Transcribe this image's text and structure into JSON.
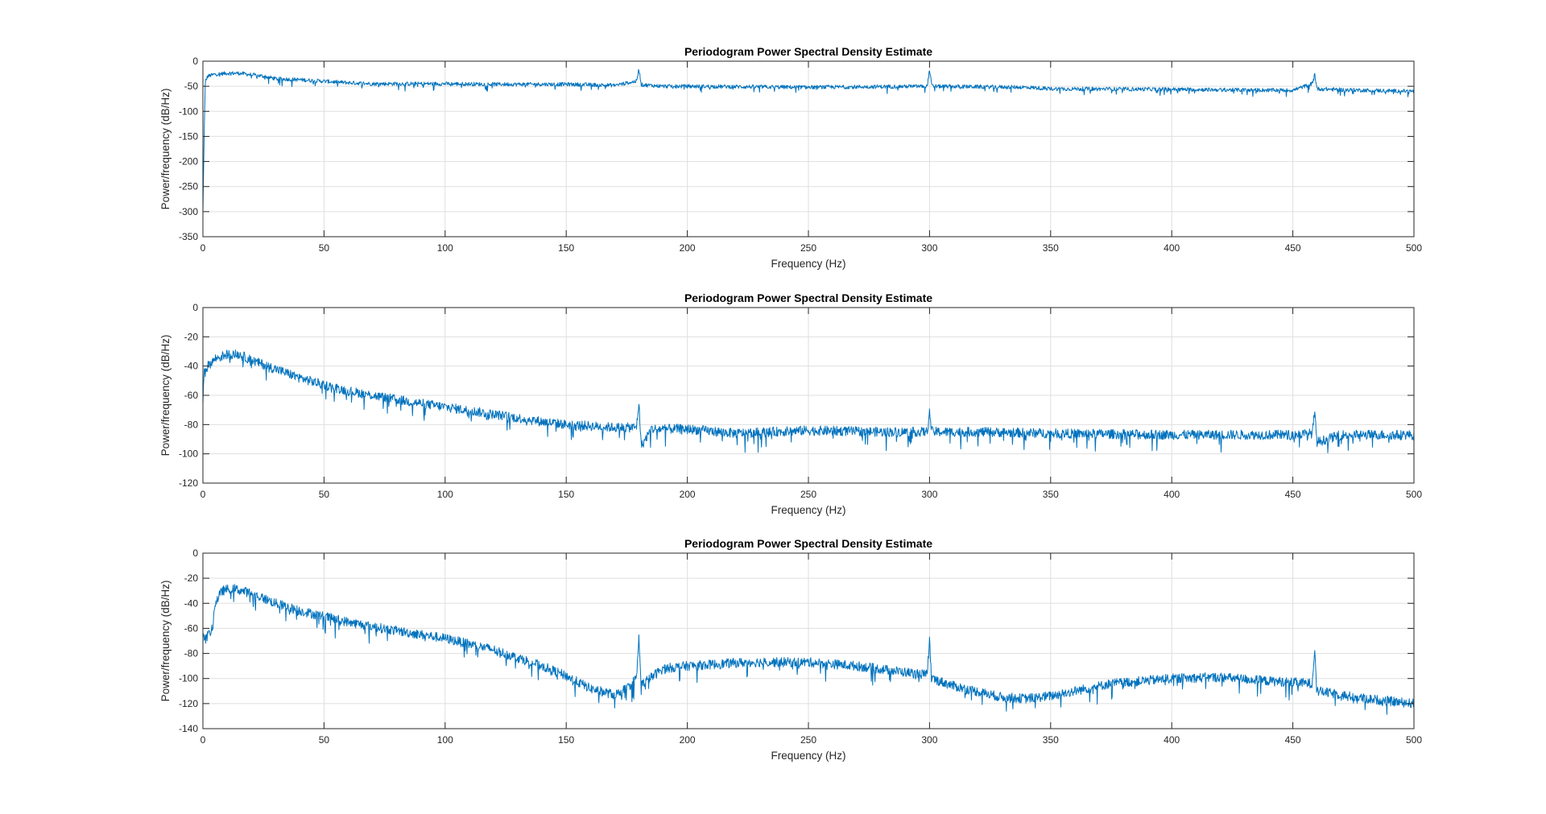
{
  "chart_data": [
    {
      "type": "line",
      "title": "Periodogram Power Spectral Density Estimate",
      "xlabel": "Frequency (Hz)",
      "ylabel": "Power/frequency (dB/Hz)",
      "xlim": [
        0,
        500
      ],
      "ylim": [
        -350,
        0
      ],
      "xticks": [
        0,
        50,
        100,
        150,
        200,
        250,
        300,
        350,
        400,
        450,
        500
      ],
      "yticks": [
        0,
        -50,
        -100,
        -150,
        -200,
        -250,
        -300,
        -350
      ],
      "grid": true,
      "color": "#0072BD",
      "series": [
        {
          "values_note": "approximate envelope read from the plot; fine noise added when drawing",
          "x": [
            0,
            0.5,
            1,
            2,
            5,
            10,
            15,
            20,
            25,
            30,
            40,
            50,
            60,
            70,
            80,
            100,
            120,
            150,
            170,
            179,
            180,
            181,
            190,
            200,
            250,
            299,
            300,
            301,
            340,
            350,
            400,
            420,
            450,
            458,
            459,
            460,
            470,
            500
          ],
          "y": [
            -300,
            -150,
            -40,
            -30,
            -26,
            -24,
            -24,
            -27,
            -30,
            -35,
            -37,
            -40,
            -43,
            -45,
            -45,
            -45,
            -46,
            -46,
            -48,
            -40,
            -15,
            -47,
            -50,
            -50,
            -52,
            -50,
            -18,
            -50,
            -52,
            -55,
            -56,
            -57,
            -58,
            -45,
            -25,
            -55,
            -57,
            -60
          ]
        }
      ]
    },
    {
      "type": "line",
      "title": "Periodogram Power Spectral Density Estimate",
      "xlabel": "Frequency (Hz)",
      "ylabel": "Power/frequency (dB/Hz)",
      "xlim": [
        0,
        500
      ],
      "ylim": [
        -120,
        0
      ],
      "xticks": [
        0,
        50,
        100,
        150,
        200,
        250,
        300,
        350,
        400,
        450,
        500
      ],
      "yticks": [
        0,
        -20,
        -40,
        -60,
        -80,
        -100,
        -120
      ],
      "grid": true,
      "color": "#0072BD",
      "series": [
        {
          "values_note": "approximate envelope read from the plot; fine noise added when drawing",
          "x": [
            0,
            0.5,
            2,
            5,
            10,
            15,
            20,
            30,
            40,
            50,
            60,
            80,
            100,
            120,
            140,
            150,
            160,
            170,
            179,
            180,
            181,
            185,
            200,
            220,
            250,
            280,
            299,
            300,
            301,
            320,
            350,
            400,
            420,
            450,
            458,
            459,
            460,
            470,
            500
          ],
          "y": [
            -65,
            -45,
            -40,
            -35,
            -32,
            -32,
            -36,
            -42,
            -48,
            -53,
            -57,
            -63,
            -68,
            -73,
            -78,
            -80,
            -81,
            -82,
            -82,
            -65,
            -95,
            -83,
            -83,
            -86,
            -84,
            -85,
            -85,
            -72,
            -85,
            -85,
            -86,
            -87,
            -87,
            -87,
            -86,
            -72,
            -92,
            -87,
            -87
          ]
        }
      ]
    },
    {
      "type": "line",
      "title": "Periodogram Power Spectral Density Estimate",
      "xlabel": "Frequency (Hz)",
      "ylabel": "Power/frequency (dB/Hz)",
      "xlim": [
        0,
        500
      ],
      "ylim": [
        -140,
        0
      ],
      "xticks": [
        0,
        50,
        100,
        150,
        200,
        250,
        300,
        350,
        400,
        450,
        500
      ],
      "yticks": [
        0,
        -20,
        -40,
        -60,
        -80,
        -100,
        -120,
        -140
      ],
      "grid": true,
      "color": "#0072BD",
      "series": [
        {
          "values_note": "approximate envelope read from the plot; fine noise added when drawing",
          "x": [
            0,
            2,
            4,
            5,
            8,
            12,
            20,
            30,
            40,
            60,
            80,
            100,
            120,
            140,
            150,
            160,
            170,
            175,
            179,
            180,
            181,
            190,
            200,
            225,
            250,
            270,
            290,
            299,
            300,
            301,
            310,
            330,
            340,
            350,
            375,
            400,
            420,
            440,
            458,
            459,
            460,
            470,
            480,
            500
          ],
          "y": [
            -68,
            -66,
            -60,
            -40,
            -30,
            -28,
            -32,
            -40,
            -46,
            -55,
            -62,
            -68,
            -77,
            -90,
            -98,
            -108,
            -113,
            -108,
            -100,
            -68,
            -105,
            -92,
            -90,
            -87,
            -87,
            -90,
            -95,
            -97,
            -70,
            -100,
            -106,
            -115,
            -116,
            -114,
            -104,
            -100,
            -99,
            -102,
            -104,
            -75,
            -110,
            -113,
            -116,
            -120
          ]
        }
      ]
    }
  ]
}
